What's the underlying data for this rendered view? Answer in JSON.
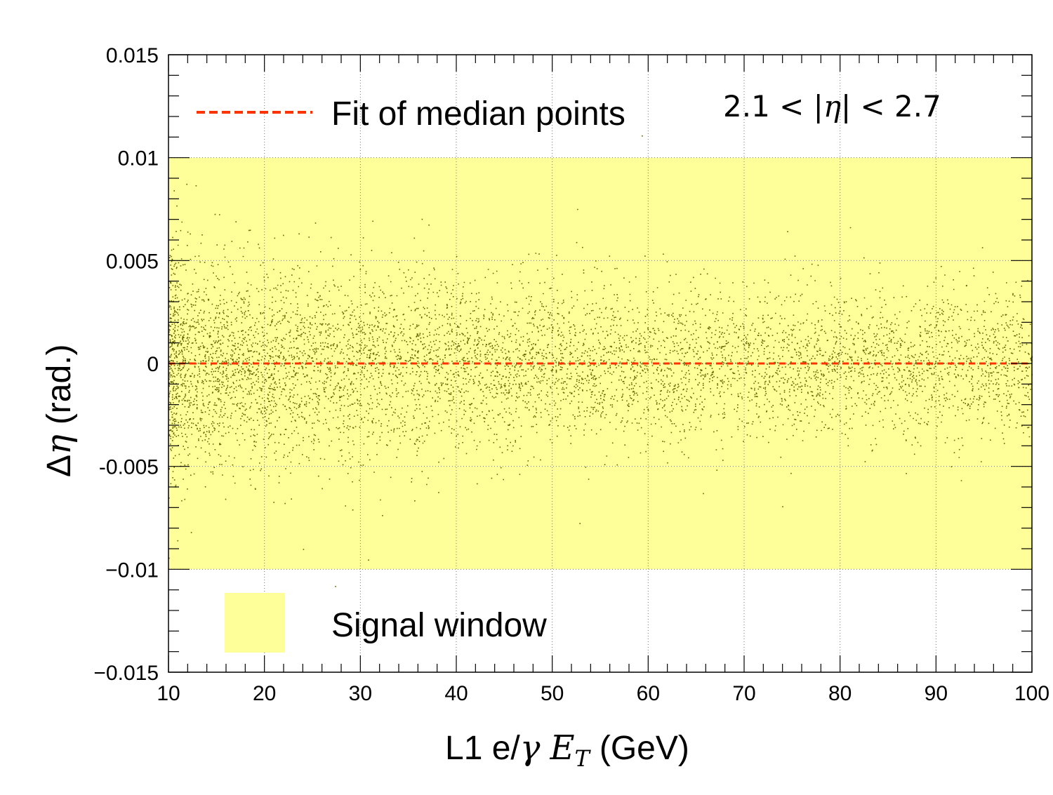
{
  "chart_data": {
    "type": "scatter",
    "xlabel": "L1 e/γ E_T (GeV)",
    "xlabel_parts": {
      "prefix": "L1 e/",
      "gamma": "γ",
      "E": "E",
      "sub": "T",
      "suffix": "(GeV)"
    },
    "ylabel": "Δη (rad.)",
    "ylabel_parts": {
      "delta": "Δ",
      "eta": "η",
      "suffix": "(rad.)"
    },
    "xlim": [
      10,
      100
    ],
    "ylim": [
      -0.015,
      0.015
    ],
    "x_ticks": [
      10,
      20,
      30,
      40,
      50,
      60,
      70,
      80,
      90,
      100
    ],
    "x_tick_labels": [
      "10",
      "20",
      "30",
      "40",
      "50",
      "60",
      "70",
      "80",
      "90",
      "100"
    ],
    "y_ticks": [
      -0.015,
      -0.01,
      -0.005,
      0,
      0.005,
      0.01,
      0.015
    ],
    "y_tick_labels": [
      "−0.015",
      "−0.01",
      "-0.005",
      "0",
      "0.005",
      "0.01",
      "0.015"
    ],
    "grid": true,
    "signal_window": {
      "y_min": -0.01,
      "y_max": 0.01,
      "color": "#ffff99",
      "label": "Signal window"
    },
    "fit_line": {
      "label": "Fit of median points",
      "y": 0,
      "color": "#ff3300",
      "style": "dashed"
    },
    "scatter": {
      "color": "#666600",
      "description": "dense cloud centered at 0, spread shrinking with E_T",
      "spread_sigma": [
        {
          "x": 10,
          "sigma": 0.0026
        },
        {
          "x": 30,
          "sigma": 0.0022
        },
        {
          "x": 50,
          "sigma": 0.0019
        },
        {
          "x": 70,
          "sigma": 0.00175
        },
        {
          "x": 100,
          "sigma": 0.0017
        }
      ]
    },
    "annotation": "2.1 < |η| < 2.7",
    "annotation_parts": {
      "left": "2.1 < |",
      "eta": "η",
      "right": "| < 2.7"
    },
    "legend_position": "top-left / bottom-left"
  }
}
